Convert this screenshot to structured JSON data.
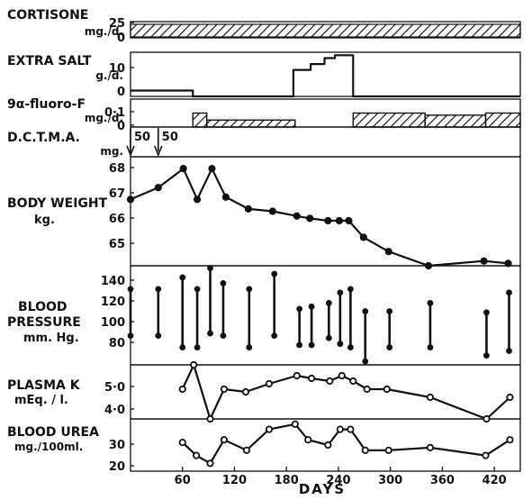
{
  "chart_data": {
    "type": "line",
    "x_axis": {
      "label": "DAYS",
      "ticks": [
        60,
        120,
        180,
        240,
        300,
        360,
        420
      ],
      "range": [
        0,
        450
      ]
    },
    "panels": [
      {
        "id": "cortisone",
        "label_lines": [
          "CORTISONE",
          "mg./d."
        ],
        "y_ticks": [
          "25",
          "0"
        ],
        "type": "constant-hatched",
        "value": 25,
        "x_range": [
          0,
          450
        ]
      },
      {
        "id": "extra-salt",
        "label_lines": [
          "EXTRA SALT",
          "g./d."
        ],
        "y_ticks": [
          "10",
          "0"
        ],
        "ylim": [
          0,
          15
        ],
        "type": "step",
        "steps": [
          {
            "x0": 0,
            "x1": 72,
            "y": 2
          },
          {
            "x0": 72,
            "x1": 188,
            "y": 0
          },
          {
            "x0": 188,
            "x1": 208,
            "y": 9
          },
          {
            "x0": 208,
            "x1": 224,
            "y": 11
          },
          {
            "x0": 224,
            "x1": 236,
            "y": 13
          },
          {
            "x0": 236,
            "x1": 257,
            "y": 14
          },
          {
            "x0": 257,
            "x1": 450,
            "y": 0
          }
        ]
      },
      {
        "id": "fluoro-f",
        "label_lines": [
          "9α-fluoro-F",
          "mg./d."
        ],
        "y_ticks": [
          "0·1",
          "0"
        ],
        "ylim": [
          0,
          0.2
        ],
        "type": "step-hatched",
        "steps": [
          {
            "x0": 72,
            "x1": 88,
            "y": 0.1
          },
          {
            "x0": 88,
            "x1": 190,
            "y": 0.05
          },
          {
            "x0": 257,
            "x1": 340,
            "y": 0.1
          },
          {
            "x0": 340,
            "x1": 410,
            "y": 0.085
          },
          {
            "x0": 410,
            "x1": 450,
            "y": 0.1
          }
        ]
      },
      {
        "id": "dctma",
        "label_lines": [
          "D.C.T.M.A.",
          "mg."
        ],
        "type": "dose-markers",
        "doses": [
          {
            "x": 0,
            "dose": "50"
          },
          {
            "x": 32,
            "dose": "50"
          }
        ]
      },
      {
        "id": "body-weight",
        "label_lines": [
          "BODY WEIGHT",
          "kg."
        ],
        "y_ticks": [
          "65",
          "66",
          "67",
          "68"
        ],
        "ylim": [
          64.3,
          68.9
        ],
        "type": "line",
        "points": [
          {
            "x": 0,
            "y": 67.1
          },
          {
            "x": 32,
            "y": 67.6
          },
          {
            "x": 61,
            "y": 68.4
          },
          {
            "x": 77,
            "y": 67.1
          },
          {
            "x": 94,
            "y": 68.4
          },
          {
            "x": 110,
            "y": 67.2
          },
          {
            "x": 136,
            "y": 66.7
          },
          {
            "x": 164,
            "y": 66.6
          },
          {
            "x": 192,
            "y": 66.4
          },
          {
            "x": 207,
            "y": 66.3
          },
          {
            "x": 228,
            "y": 66.2
          },
          {
            "x": 241,
            "y": 66.2
          },
          {
            "x": 252,
            "y": 66.2
          },
          {
            "x": 269,
            "y": 65.5
          },
          {
            "x": 298,
            "y": 64.9
          },
          {
            "x": 344,
            "y": 64.3
          },
          {
            "x": 408,
            "y": 64.5
          },
          {
            "x": 436,
            "y": 64.4
          }
        ]
      },
      {
        "id": "blood-pressure",
        "label_lines": [
          "BLOOD",
          "PRESSURE",
          "mm. Hg."
        ],
        "y_ticks": [
          "80",
          "100",
          "120",
          "140"
        ],
        "ylim": [
          65,
          150
        ],
        "type": "range",
        "bars": [
          {
            "x": 0,
            "sys": 130,
            "dia": 90
          },
          {
            "x": 32,
            "sys": 130,
            "dia": 90
          },
          {
            "x": 60,
            "sys": 140,
            "dia": 80
          },
          {
            "x": 77,
            "sys": 130,
            "dia": 80
          },
          {
            "x": 92,
            "sys": 148,
            "dia": 92
          },
          {
            "x": 107,
            "sys": 135,
            "dia": 90
          },
          {
            "x": 137,
            "sys": 130,
            "dia": 80
          },
          {
            "x": 166,
            "sys": 143,
            "dia": 90
          },
          {
            "x": 195,
            "sys": 113,
            "dia": 82
          },
          {
            "x": 209,
            "sys": 115,
            "dia": 82
          },
          {
            "x": 229,
            "sys": 118,
            "dia": 88
          },
          {
            "x": 242,
            "sys": 127,
            "dia": 83
          },
          {
            "x": 254,
            "sys": 130,
            "dia": 80
          },
          {
            "x": 271,
            "sys": 111,
            "dia": 68
          },
          {
            "x": 299,
            "sys": 111,
            "dia": 80
          },
          {
            "x": 346,
            "sys": 118,
            "dia": 80
          },
          {
            "x": 411,
            "sys": 110,
            "dia": 73
          },
          {
            "x": 437,
            "sys": 127,
            "dia": 77
          }
        ]
      },
      {
        "id": "plasma-k",
        "label_lines": [
          "PLASMA  K",
          "mEq. / l."
        ],
        "y_ticks": [
          "4·0",
          "5·0"
        ],
        "ylim": [
          3.6,
          5.6
        ],
        "type": "line-open",
        "points": [
          {
            "x": 60,
            "y": 4.7
          },
          {
            "x": 73,
            "y": 5.6
          },
          {
            "x": 92,
            "y": 3.6
          },
          {
            "x": 108,
            "y": 4.7
          },
          {
            "x": 133,
            "y": 4.6
          },
          {
            "x": 160,
            "y": 4.9
          },
          {
            "x": 192,
            "y": 5.2
          },
          {
            "x": 209,
            "y": 5.1
          },
          {
            "x": 230,
            "y": 5.0
          },
          {
            "x": 244,
            "y": 5.2
          },
          {
            "x": 257,
            "y": 5.0
          },
          {
            "x": 273,
            "y": 4.7
          },
          {
            "x": 296,
            "y": 4.7
          },
          {
            "x": 346,
            "y": 4.4
          },
          {
            "x": 411,
            "y": 3.6
          },
          {
            "x": 438,
            "y": 4.4
          }
        ]
      },
      {
        "id": "blood-urea",
        "label_lines": [
          "BLOOD UREA",
          "mg./100ml."
        ],
        "y_ticks": [
          "20",
          "30"
        ],
        "ylim": [
          18,
          38
        ],
        "type": "line-open",
        "points": [
          {
            "x": 60,
            "y": 29
          },
          {
            "x": 76,
            "y": 24
          },
          {
            "x": 92,
            "y": 21
          },
          {
            "x": 108,
            "y": 30
          },
          {
            "x": 134,
            "y": 26
          },
          {
            "x": 160,
            "y": 34
          },
          {
            "x": 190,
            "y": 36
          },
          {
            "x": 205,
            "y": 30
          },
          {
            "x": 228,
            "y": 28
          },
          {
            "x": 242,
            "y": 34
          },
          {
            "x": 254,
            "y": 34
          },
          {
            "x": 271,
            "y": 26
          },
          {
            "x": 298,
            "y": 26
          },
          {
            "x": 346,
            "y": 27
          },
          {
            "x": 410,
            "y": 24
          },
          {
            "x": 438,
            "y": 30
          }
        ]
      }
    ]
  }
}
